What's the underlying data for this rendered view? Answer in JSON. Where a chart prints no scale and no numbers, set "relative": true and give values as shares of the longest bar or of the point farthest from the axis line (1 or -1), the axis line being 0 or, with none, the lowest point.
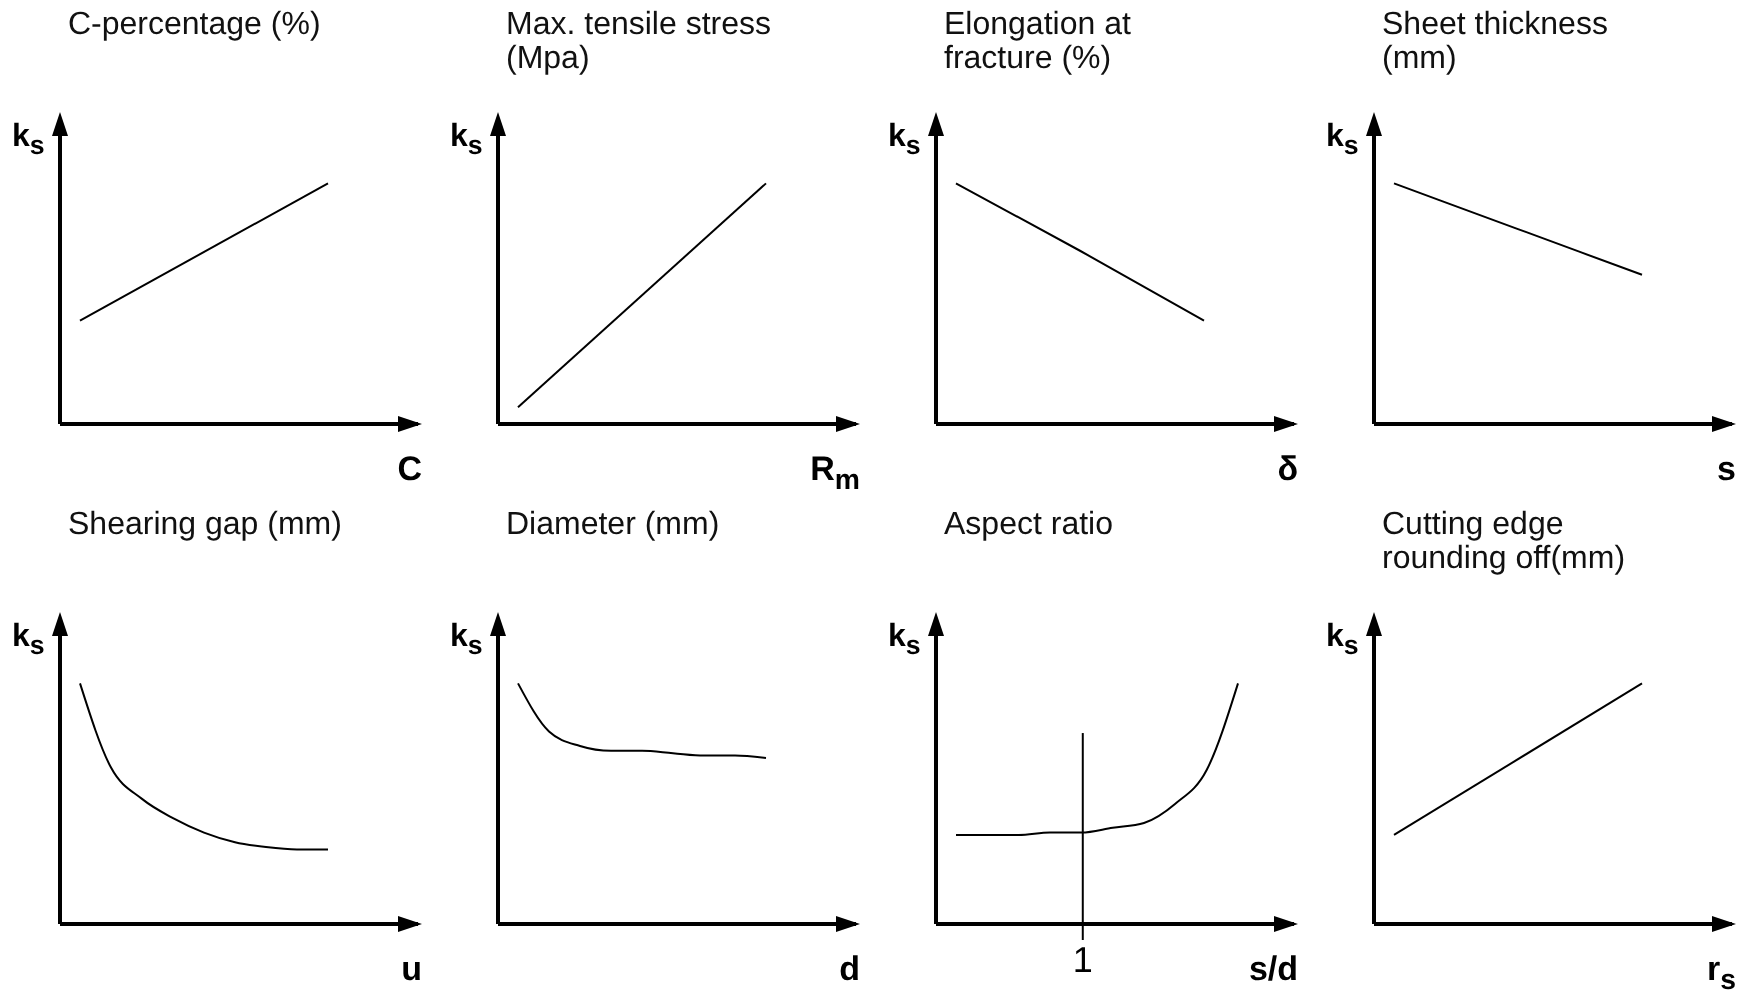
{
  "chart_data": [
    {
      "type": "line",
      "title": "C-percentage (%)",
      "ylabel": "k$_{s}$",
      "xlabel": "C",
      "relative": true,
      "categories": [
        null,
        null
      ],
      "values": [
        0.43,
        1
      ],
      "color": "#000000"
    },
    {
      "type": "line",
      "title": "Max. tensile stress (Mpa)",
      "ylabel": "k$_{s}$",
      "xlabel": "R$_{m}$",
      "relative": true,
      "categories": [
        null,
        null
      ],
      "values": [
        0.07,
        1
      ],
      "color": "#000000"
    },
    {
      "type": "line",
      "title": "Elongation at fracture (%)",
      "ylabel": "k$_{s}$",
      "xlabel": "δ",
      "relative": true,
      "categories": [
        null,
        null,
        null
      ],
      "values": [
        1,
        0.72,
        0.43
      ],
      "color": "#000000"
    },
    {
      "type": "line",
      "title": "Sheet thickness (mm)",
      "ylabel": "k$_{s}$",
      "xlabel": "s",
      "relative": true,
      "categories": [
        null,
        null,
        null
      ],
      "values": [
        1,
        0.81,
        0.62
      ],
      "color": "#000000"
    },
    {
      "type": "line",
      "title": "Shearing gap (mm)",
      "ylabel": "k$_{s}$",
      "xlabel": "u",
      "relative": true,
      "categories": [
        null,
        null,
        null,
        null,
        null,
        null,
        null,
        null,
        null
      ],
      "values": [
        1,
        0.65,
        0.52,
        0.44,
        0.38,
        0.34,
        0.32,
        0.31,
        0.31
      ],
      "color": "#000000"
    },
    {
      "type": "line",
      "title": "Diameter (mm)",
      "ylabel": "k$_{s}$",
      "xlabel": "d",
      "relative": true,
      "categories": [
        null,
        null,
        null,
        null,
        null,
        null,
        null,
        null,
        null
      ],
      "values": [
        1,
        0.8,
        0.74,
        0.72,
        0.72,
        0.71,
        0.7,
        0.7,
        0.69
      ],
      "color": "#000000"
    },
    {
      "type": "line",
      "title": "Aspect ratio",
      "ylabel": "k$_{s}$",
      "xlabel": "s/d",
      "relative": true,
      "categories": [
        null,
        null,
        null,
        null,
        null,
        null,
        null,
        null,
        null,
        null
      ],
      "values": [
        0.37,
        0.37,
        0.37,
        0.38,
        0.38,
        0.4,
        0.42,
        0.5,
        0.64,
        1
      ],
      "color": "#000000",
      "annotations": [
        "1"
      ]
    },
    {
      "type": "line",
      "title": "Cutting edge rounding off(mm)",
      "ylabel": "k$_{s}$",
      "xlabel": "r$_{s}$",
      "relative": true,
      "categories": [
        null,
        null
      ],
      "values": [
        0.37,
        1
      ],
      "color": "#000000"
    }
  ]
}
